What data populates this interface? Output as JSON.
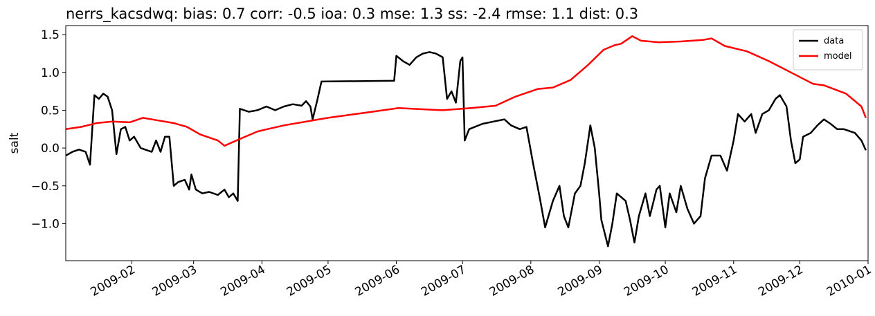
{
  "chart_data": {
    "type": "line",
    "title": "nerrs_kacsdwq: bias: 0.7  corr: -0.5  ioa: 0.3  mse: 1.3  ss: -2.4  rmse: 1.1  dist: 0.3",
    "y_label": "salt",
    "xlim": [
      1,
      365
    ],
    "xticks": [
      {
        "value": 31,
        "label": "2009-02"
      },
      {
        "value": 59,
        "label": "2009-03"
      },
      {
        "value": 90,
        "label": "2009-04"
      },
      {
        "value": 120,
        "label": "2009-05"
      },
      {
        "value": 151,
        "label": "2009-06"
      },
      {
        "value": 181,
        "label": "2009-07"
      },
      {
        "value": 212,
        "label": "2009-08"
      },
      {
        "value": 243,
        "label": "2009-09"
      },
      {
        "value": 273,
        "label": "2009-10"
      },
      {
        "value": 304,
        "label": "2009-11"
      },
      {
        "value": 334,
        "label": "2009-12"
      },
      {
        "value": 365,
        "label": "2010-01"
      }
    ],
    "ylim": [
      -1.49,
      1.62
    ],
    "yticks": [
      {
        "value": -1.0,
        "label": "−1.0"
      },
      {
        "value": -0.5,
        "label": "−0.5"
      },
      {
        "value": 0.0,
        "label": "0.0"
      },
      {
        "value": 0.5,
        "label": "0.5"
      },
      {
        "value": 1.0,
        "label": "1.0"
      },
      {
        "value": 1.5,
        "label": "1.5"
      }
    ],
    "legend": "upper right",
    "series": [
      {
        "name": "data",
        "color": "#000000",
        "x": [
          1,
          4,
          7,
          10,
          12,
          14,
          16,
          18,
          20,
          22,
          24,
          26,
          28,
          30,
          32,
          35,
          38,
          40,
          42,
          44,
          46,
          48,
          50,
          52,
          55,
          57,
          58,
          60,
          63,
          66,
          70,
          73,
          75,
          77,
          79,
          80,
          84,
          88,
          92,
          96,
          100,
          104,
          108,
          110,
          112,
          113,
          115,
          117,
          150,
          151,
          154,
          157,
          160,
          163,
          166,
          169,
          172,
          174,
          176,
          178,
          180,
          181,
          182,
          184,
          190,
          195,
          200,
          203,
          207,
          210,
          213,
          216,
          218.5,
          222,
          225,
          227,
          229,
          232,
          234.5,
          236.5,
          239,
          241,
          243,
          244,
          247,
          249,
          251,
          255,
          257,
          259,
          261,
          264,
          266,
          269,
          270.5,
          273,
          275,
          278,
          280,
          283,
          286,
          289,
          291,
          294,
          298,
          301,
          304,
          306,
          309,
          312,
          314,
          317,
          320,
          323,
          325,
          328,
          330,
          332,
          334,
          335.5,
          339,
          342,
          345,
          348,
          351,
          354,
          359,
          362,
          364
        ],
        "values": [
          -0.1,
          -0.05,
          -0.02,
          -0.05,
          -0.22,
          0.7,
          0.65,
          0.72,
          0.68,
          0.5,
          -0.08,
          0.25,
          0.28,
          0.1,
          0.15,
          0.0,
          -0.03,
          -0.05,
          0.1,
          -0.05,
          0.15,
          0.15,
          -0.5,
          -0.45,
          -0.42,
          -0.55,
          -0.35,
          -0.55,
          -0.6,
          -0.58,
          -0.62,
          -0.55,
          -0.65,
          -0.6,
          -0.7,
          0.52,
          0.48,
          0.5,
          0.55,
          0.5,
          0.55,
          0.58,
          0.56,
          0.62,
          0.55,
          0.38,
          0.62,
          0.88,
          0.89,
          1.22,
          1.15,
          1.1,
          1.2,
          1.25,
          1.27,
          1.25,
          1.2,
          0.65,
          0.75,
          0.6,
          1.15,
          1.2,
          0.1,
          0.25,
          0.32,
          0.35,
          0.38,
          0.3,
          0.25,
          0.28,
          -0.2,
          -0.65,
          -1.05,
          -0.7,
          -0.5,
          -0.9,
          -1.05,
          -0.6,
          -0.5,
          -0.2,
          0.3,
          0.0,
          -0.6,
          -0.95,
          -1.3,
          -1.0,
          -0.6,
          -0.7,
          -0.95,
          -1.25,
          -0.9,
          -0.6,
          -0.9,
          -0.55,
          -0.5,
          -1.05,
          -0.6,
          -0.85,
          -0.5,
          -0.8,
          -1.0,
          -0.9,
          -0.4,
          -0.1,
          -0.1,
          -0.3,
          0.1,
          0.45,
          0.35,
          0.45,
          0.2,
          0.45,
          0.5,
          0.65,
          0.7,
          0.55,
          0.1,
          -0.2,
          -0.15,
          0.15,
          0.2,
          0.3,
          0.38,
          0.32,
          0.25,
          0.25,
          0.2,
          0.1,
          -0.03
        ]
      },
      {
        "name": "model",
        "color": "#ff0000",
        "x": [
          1,
          8,
          15,
          22,
          30,
          36,
          42,
          50,
          56,
          62,
          70,
          73,
          80,
          88,
          100,
          120,
          140,
          152,
          165,
          172,
          185,
          196,
          205,
          215,
          222,
          230,
          238,
          245,
          250,
          253,
          258,
          262,
          270,
          280,
          290,
          294,
          300,
          310,
          320,
          330,
          340,
          345,
          355,
          362,
          364
        ],
        "values": [
          0.25,
          0.28,
          0.33,
          0.35,
          0.34,
          0.4,
          0.37,
          0.33,
          0.28,
          0.18,
          0.1,
          0.03,
          0.12,
          0.22,
          0.3,
          0.4,
          0.48,
          0.53,
          0.51,
          0.5,
          0.53,
          0.56,
          0.68,
          0.78,
          0.8,
          0.9,
          1.1,
          1.3,
          1.36,
          1.38,
          1.48,
          1.42,
          1.4,
          1.41,
          1.43,
          1.45,
          1.35,
          1.28,
          1.15,
          1.0,
          0.85,
          0.83,
          0.72,
          0.55,
          0.4
        ]
      }
    ]
  }
}
